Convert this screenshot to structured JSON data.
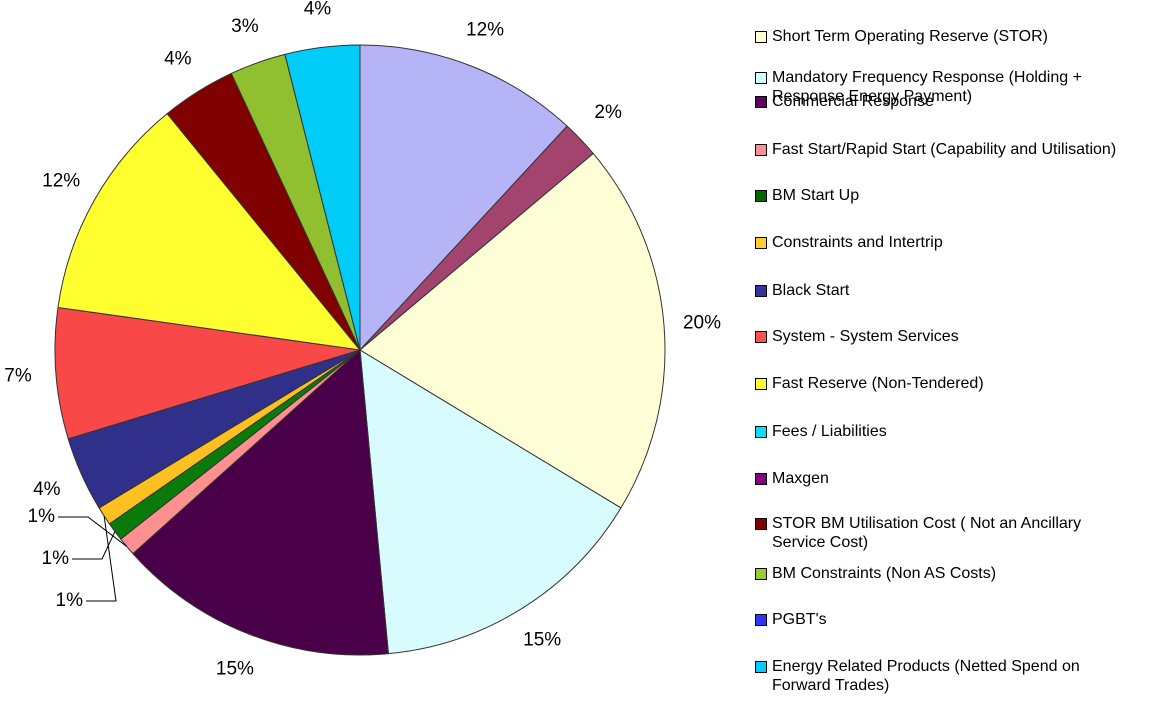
{
  "chart_data": {
    "type": "pie",
    "values": [
      12,
      2,
      20,
      15,
      15,
      1,
      1,
      1,
      4,
      7,
      12,
      4,
      3,
      4
    ],
    "value_labels": [
      "12%",
      "2%",
      "20%",
      "15%",
      "15%",
      "1%",
      "1%",
      "1%",
      "4%",
      "7%",
      "12%",
      "4%",
      "3%",
      "4%"
    ],
    "colors": [
      "#b4b4f6",
      "#a3446f",
      "#fefed6",
      "#d8fcfe",
      "#4a0048",
      "#ff9090",
      "#0a7a0a",
      "#fcc020",
      "#30308a",
      "#f84848",
      "#ffff30",
      "#800000",
      "#90c030",
      "#00ccf8"
    ],
    "legend": [
      {
        "name": "Short Term Operating Reserve (STOR)",
        "color": "#ffffd0"
      },
      {
        "name": "Mandatory Frequency Response (Holding + Response Energy Payment)",
        "color": "#d0ffff"
      },
      {
        "name": "Commercial Response",
        "color": "#600060"
      },
      {
        "name": "Fast Start/Rapid Start (Capability and Utilisation)",
        "color": "#ff9090"
      },
      {
        "name": "BM Start Up",
        "color": "#006600"
      },
      {
        "name": "Constraints and Intertrip",
        "color": "#ffcc33"
      },
      {
        "name": "Black Start",
        "color": "#333399"
      },
      {
        "name": "System - System Services",
        "color": "#ff5050"
      },
      {
        "name": "Fast Reserve (Non-Tendered)",
        "color": "#ffff33"
      },
      {
        "name": "Fees / Liabilities",
        "color": "#00e0ff"
      },
      {
        "name": "Maxgen",
        "color": "#800080"
      },
      {
        "name": "STOR BM Utilisation Cost ( Not an Ancillary Service Cost)",
        "color": "#800000"
      },
      {
        "name": "BM Constraints (Non AS Costs)",
        "color": "#99cc33"
      },
      {
        "name": "PGBT's",
        "color": "#3333ff"
      },
      {
        "name": "Energy Related Products (Netted Spend on Forward Trades)",
        "color": "#00ccff"
      }
    ]
  }
}
